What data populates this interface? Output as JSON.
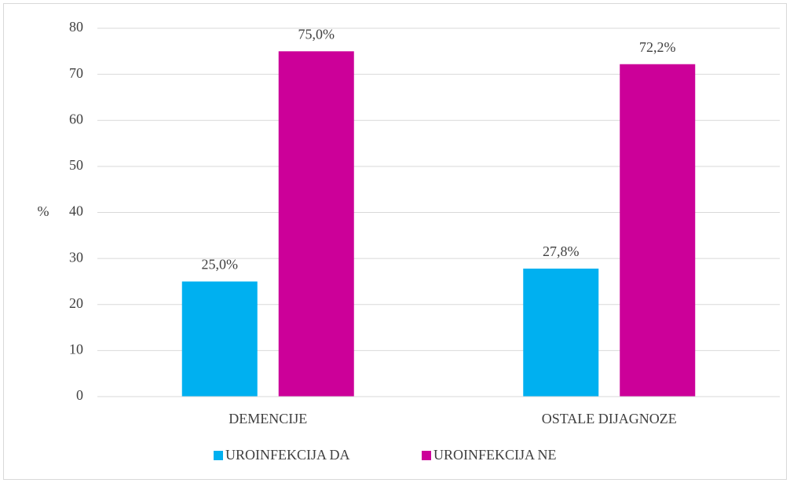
{
  "chart_data": {
    "type": "bar",
    "y_label": "%",
    "categories": [
      "DEMENCIJE",
      "OSTALE DIJAGNOZE"
    ],
    "series": [
      {
        "name": "UROINFEKCIJA DA",
        "color": "#00b0f0",
        "values": [
          25,
          27.8
        ],
        "value_labels": [
          "25,0%",
          "27,8%"
        ]
      },
      {
        "name": "UROINFEKCIJA NE",
        "color": "#cc0099",
        "values": [
          75,
          72.2
        ],
        "value_labels": [
          "75,0%",
          "72,2%"
        ]
      }
    ],
    "ylim": [
      0,
      80
    ],
    "yticks": [
      0,
      10,
      20,
      30,
      40,
      50,
      60,
      70,
      80
    ],
    "grid": true,
    "legend": "bottom"
  }
}
